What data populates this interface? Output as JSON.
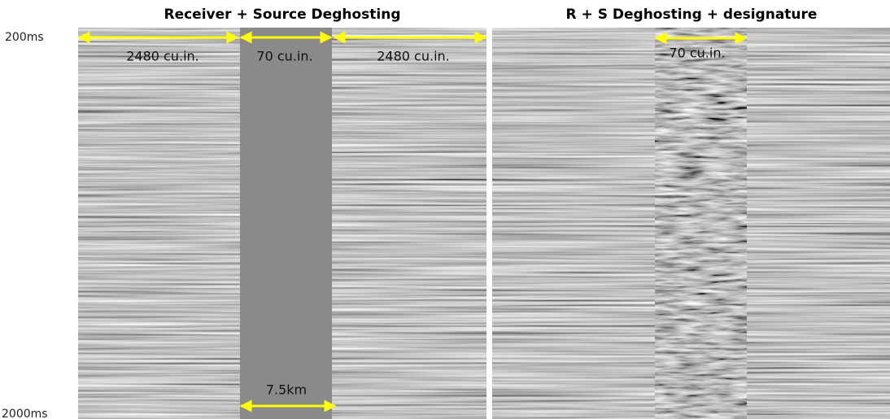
{
  "axis_labels": {
    "top": "200ms",
    "bottom": "2000ms"
  },
  "panels": [
    {
      "title": "Receiver + Source Deghosting",
      "annotations": [
        "2480 cu.in.",
        "70 cu.in.",
        "2480 cu.in."
      ],
      "scale_label": "7.5km"
    },
    {
      "title": "R + S Deghosting + designature",
      "annotations": [
        "70 cu.in."
      ]
    }
  ]
}
